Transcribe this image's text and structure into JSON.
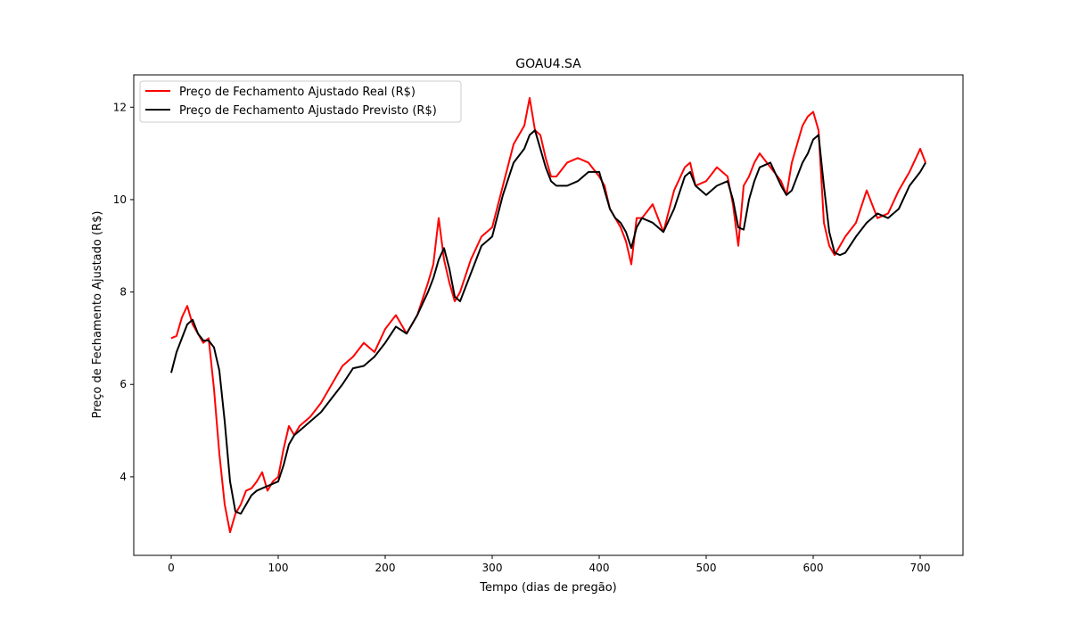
{
  "chart_data": {
    "type": "line",
    "title": "GOAU4.SA",
    "xlabel": "Tempo (dias de pregão)",
    "ylabel": "Preço de Fechamento Ajustado (R$)",
    "xlim": [
      -35,
      740
    ],
    "ylim": [
      2.3,
      12.7
    ],
    "xticks": [
      0,
      100,
      200,
      300,
      400,
      500,
      600,
      700
    ],
    "yticks": [
      4,
      6,
      8,
      10,
      12
    ],
    "grid": false,
    "legend_position": "top-left",
    "series": [
      {
        "name": "Preço de Fechamento Ajustado Real (R$)",
        "color": "#ff0000",
        "x": [
          0,
          5,
          10,
          15,
          20,
          25,
          30,
          35,
          40,
          45,
          50,
          55,
          60,
          65,
          70,
          75,
          80,
          85,
          90,
          95,
          100,
          105,
          110,
          115,
          120,
          130,
          140,
          150,
          160,
          170,
          180,
          190,
          200,
          210,
          220,
          230,
          240,
          245,
          250,
          255,
          260,
          265,
          270,
          280,
          290,
          300,
          310,
          320,
          330,
          335,
          340,
          345,
          350,
          355,
          360,
          370,
          380,
          390,
          400,
          405,
          410,
          415,
          420,
          425,
          430,
          435,
          440,
          450,
          460,
          470,
          480,
          485,
          490,
          500,
          510,
          520,
          525,
          530,
          535,
          540,
          545,
          550,
          560,
          570,
          575,
          580,
          590,
          595,
          600,
          605,
          610,
          615,
          620,
          625,
          630,
          640,
          650,
          660,
          670,
          680,
          690,
          700,
          705
        ],
        "y": [
          7.0,
          7.05,
          7.45,
          7.7,
          7.3,
          7.1,
          6.9,
          7.0,
          5.9,
          4.5,
          3.4,
          2.8,
          3.2,
          3.4,
          3.7,
          3.75,
          3.9,
          4.1,
          3.7,
          3.9,
          4.0,
          4.6,
          5.1,
          4.9,
          5.1,
          5.3,
          5.6,
          6.0,
          6.4,
          6.6,
          6.9,
          6.7,
          7.2,
          7.5,
          7.1,
          7.5,
          8.2,
          8.6,
          9.6,
          8.7,
          8.2,
          7.8,
          8.0,
          8.7,
          9.2,
          9.4,
          10.3,
          11.2,
          11.6,
          12.2,
          11.5,
          11.4,
          10.9,
          10.5,
          10.5,
          10.8,
          10.9,
          10.8,
          10.5,
          10.3,
          9.8,
          9.6,
          9.4,
          9.1,
          8.6,
          9.6,
          9.6,
          9.9,
          9.3,
          10.2,
          10.7,
          10.8,
          10.3,
          10.4,
          10.7,
          10.5,
          9.9,
          9.0,
          10.3,
          10.5,
          10.8,
          11.0,
          10.7,
          10.4,
          10.1,
          10.8,
          11.6,
          11.8,
          11.9,
          11.5,
          9.5,
          9.0,
          8.8,
          9.0,
          9.2,
          9.5,
          10.2,
          9.6,
          9.7,
          10.2,
          10.6,
          11.1,
          10.8
        ]
      },
      {
        "name": "Preço de Fechamento Ajustado Previsto (R$)",
        "color": "#000000",
        "x": [
          0,
          5,
          10,
          15,
          20,
          25,
          30,
          35,
          40,
          45,
          50,
          55,
          60,
          65,
          70,
          75,
          80,
          85,
          90,
          95,
          100,
          105,
          110,
          115,
          120,
          130,
          140,
          150,
          160,
          170,
          180,
          190,
          200,
          210,
          220,
          230,
          240,
          245,
          250,
          255,
          260,
          265,
          270,
          280,
          290,
          300,
          310,
          320,
          330,
          335,
          340,
          345,
          350,
          355,
          360,
          370,
          380,
          390,
          400,
          405,
          410,
          415,
          420,
          425,
          430,
          435,
          440,
          450,
          460,
          470,
          480,
          485,
          490,
          500,
          510,
          520,
          525,
          530,
          535,
          540,
          545,
          550,
          560,
          570,
          575,
          580,
          590,
          595,
          600,
          605,
          610,
          615,
          620,
          625,
          630,
          640,
          650,
          660,
          670,
          680,
          690,
          700,
          705
        ],
        "y": [
          6.25,
          6.7,
          7.0,
          7.3,
          7.4,
          7.1,
          6.95,
          6.95,
          6.8,
          6.3,
          5.2,
          3.9,
          3.25,
          3.2,
          3.4,
          3.6,
          3.7,
          3.75,
          3.8,
          3.85,
          3.9,
          4.25,
          4.7,
          4.9,
          5.0,
          5.2,
          5.4,
          5.7,
          6.0,
          6.35,
          6.4,
          6.6,
          6.9,
          7.25,
          7.1,
          7.5,
          8.0,
          8.3,
          8.7,
          8.95,
          8.5,
          7.9,
          7.8,
          8.4,
          9.0,
          9.2,
          10.1,
          10.8,
          11.1,
          11.4,
          11.5,
          11.1,
          10.7,
          10.4,
          10.3,
          10.3,
          10.4,
          10.6,
          10.6,
          10.2,
          9.8,
          9.6,
          9.5,
          9.3,
          8.95,
          9.4,
          9.6,
          9.5,
          9.3,
          9.8,
          10.5,
          10.6,
          10.3,
          10.1,
          10.3,
          10.4,
          10.0,
          9.4,
          9.35,
          10.0,
          10.4,
          10.7,
          10.8,
          10.3,
          10.1,
          10.2,
          10.8,
          11.0,
          11.3,
          11.4,
          10.3,
          9.3,
          8.85,
          8.8,
          8.85,
          9.2,
          9.5,
          9.7,
          9.6,
          9.8,
          10.3,
          10.6,
          10.8
        ]
      }
    ]
  }
}
